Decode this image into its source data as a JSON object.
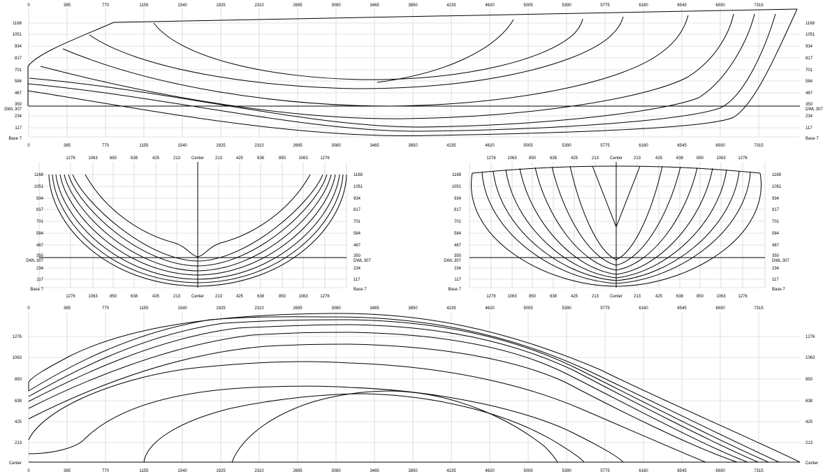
{
  "colors": {
    "curve": "#000000",
    "grid": "#c8c8c8",
    "background": "#ffffff"
  },
  "profile_view": {
    "x_ticks": [
      "0",
      "385",
      "770",
      "1155",
      "1540",
      "1925",
      "2310",
      "2695",
      "3080",
      "3465",
      "3850",
      "4235",
      "4620",
      "5005",
      "5390",
      "5775",
      "6160",
      "6545",
      "6930",
      "7315"
    ],
    "y_ticks": [
      "1168",
      "1051",
      "934",
      "817",
      "701",
      "584",
      "467",
      "350",
      "234",
      "117"
    ],
    "dwl_label": "DWL 307",
    "base_label": "Base 7"
  },
  "body_plan_views": [
    {
      "half_breadth_ticks": [
        "1276",
        "1063",
        "850",
        "638",
        "425",
        "213",
        "Center",
        "213",
        "425",
        "638",
        "850",
        "1063",
        "1276"
      ],
      "y_ticks": [
        "1168",
        "1051",
        "934",
        "817",
        "701",
        "584",
        "467",
        "350",
        "234",
        "117"
      ],
      "dwl_label": "DWL 307",
      "base_label": "Base 7"
    },
    {
      "half_breadth_ticks": [
        "1276",
        "1063",
        "850",
        "638",
        "425",
        "213",
        "Center",
        "213",
        "425",
        "638",
        "850",
        "1063",
        "1276"
      ],
      "y_ticks": [
        "1168",
        "1051",
        "934",
        "817",
        "701",
        "584",
        "467",
        "350",
        "234",
        "117"
      ],
      "dwl_label": "DWL 307",
      "base_label": "Base 7"
    }
  ],
  "plan_view": {
    "x_ticks": [
      "0",
      "385",
      "770",
      "1155",
      "1540",
      "1925",
      "2310",
      "2695",
      "3080",
      "3465",
      "3850",
      "4235",
      "4620",
      "5005",
      "5390",
      "5775",
      "6160",
      "6545",
      "6930",
      "7315"
    ],
    "y_ticks": [
      "1276",
      "1063",
      "850",
      "638",
      "425",
      "213"
    ],
    "center_label": "Center"
  }
}
